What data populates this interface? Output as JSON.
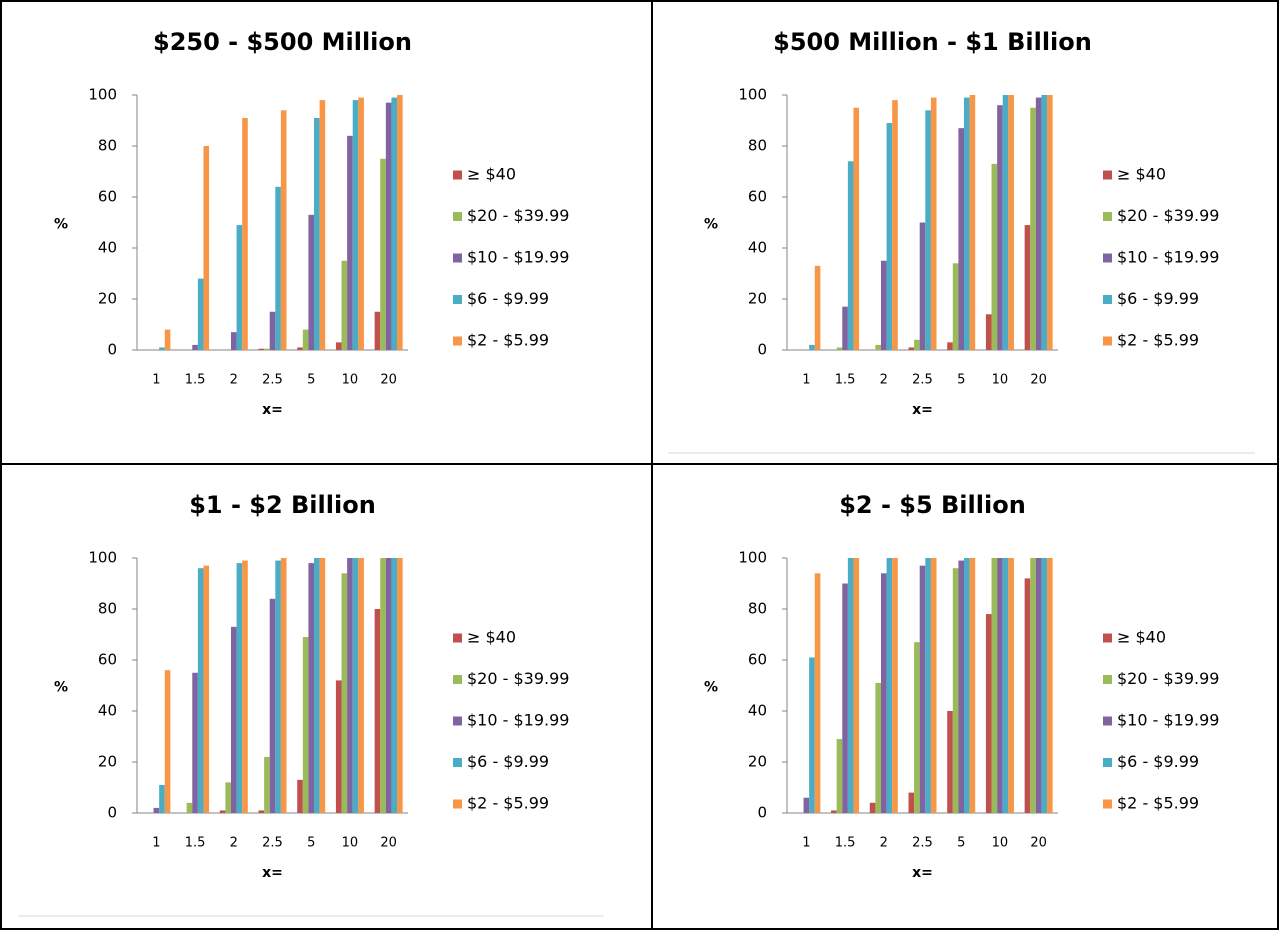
{
  "chart_data": [
    {
      "type": "bar",
      "title": "$250 - $500 Million",
      "ylabel": "%",
      "xlabel": "x=",
      "categories": [
        "1",
        "1.5",
        "2",
        "2.5",
        "5",
        "10",
        "20"
      ],
      "series": [
        {
          "name": "≥ $40",
          "color": "#c0504d",
          "values": [
            0,
            0,
            0,
            0.5,
            1,
            3,
            15
          ]
        },
        {
          "name": "$20 - $39.99",
          "color": "#9bbb59",
          "values": [
            0,
            0,
            0,
            0.5,
            8,
            35,
            75
          ]
        },
        {
          "name": "$10 - $19.99",
          "color": "#8064a2",
          "values": [
            0,
            2,
            7,
            15,
            53,
            84,
            97
          ]
        },
        {
          "name": "$6 - $9.99",
          "color": "#4bacc6",
          "values": [
            1,
            28,
            49,
            64,
            91,
            98,
            99
          ]
        },
        {
          "name": "$2 - $5.99",
          "color": "#f79646",
          "values": [
            8,
            80,
            91,
            94,
            98,
            99,
            100
          ]
        }
      ],
      "ylim": [
        0,
        100
      ],
      "yticks": [
        0,
        20,
        40,
        60,
        80,
        100
      ],
      "legend": "right"
    },
    {
      "type": "bar",
      "title": "$500 Million - $1 Billion",
      "ylabel": "%",
      "xlabel": "x=",
      "categories": [
        "1",
        "1.5",
        "2",
        "2.5",
        "5",
        "10",
        "20"
      ],
      "series": [
        {
          "name": "≥ $40",
          "color": "#c0504d",
          "values": [
            0,
            0,
            0,
            1,
            3,
            14,
            49
          ]
        },
        {
          "name": "$20 - $39.99",
          "color": "#9bbb59",
          "values": [
            0,
            1,
            2,
            4,
            34,
            73,
            95
          ]
        },
        {
          "name": "$10 - $19.99",
          "color": "#8064a2",
          "values": [
            0,
            17,
            35,
            50,
            87,
            96,
            99
          ]
        },
        {
          "name": "$6 - $9.99",
          "color": "#4bacc6",
          "values": [
            2,
            74,
            89,
            94,
            99,
            100,
            100
          ]
        },
        {
          "name": "$2 - $5.99",
          "color": "#f79646",
          "values": [
            33,
            95,
            98,
            99,
            100,
            100,
            100
          ]
        }
      ],
      "ylim": [
        0,
        100
      ],
      "yticks": [
        0,
        20,
        40,
        60,
        80,
        100
      ],
      "legend": "right"
    },
    {
      "type": "bar",
      "title": "$1 - $2 Billion",
      "ylabel": "%",
      "xlabel": "x=",
      "categories": [
        "1",
        "1.5",
        "2",
        "2.5",
        "5",
        "10",
        "20"
      ],
      "series": [
        {
          "name": "≥ $40",
          "color": "#c0504d",
          "values": [
            0,
            0,
            1,
            1,
            13,
            52,
            80
          ]
        },
        {
          "name": "$20 - $39.99",
          "color": "#9bbb59",
          "values": [
            0,
            4,
            12,
            22,
            69,
            94,
            100
          ]
        },
        {
          "name": "$10 - $19.99",
          "color": "#8064a2",
          "values": [
            2,
            55,
            73,
            84,
            98,
            100,
            100
          ]
        },
        {
          "name": "$6 - $9.99",
          "color": "#4bacc6",
          "values": [
            11,
            96,
            98,
            99,
            100,
            100,
            100
          ]
        },
        {
          "name": "$2 - $5.99",
          "color": "#f79646",
          "values": [
            56,
            97,
            99,
            100,
            100,
            100,
            100
          ]
        }
      ],
      "ylim": [
        0,
        100
      ],
      "yticks": [
        0,
        20,
        40,
        60,
        80,
        100
      ],
      "legend": "right"
    },
    {
      "type": "bar",
      "title": "$2 - $5 Billion",
      "ylabel": "%",
      "xlabel": "x=",
      "categories": [
        "1",
        "1.5",
        "2",
        "2.5",
        "5",
        "10",
        "20"
      ],
      "series": [
        {
          "name": "≥ $40",
          "color": "#c0504d",
          "values": [
            0,
            1,
            4,
            8,
            40,
            78,
            92
          ]
        },
        {
          "name": "$20 - $39.99",
          "color": "#9bbb59",
          "values": [
            0,
            29,
            51,
            67,
            96,
            100,
            100
          ]
        },
        {
          "name": "$10 - $19.99",
          "color": "#8064a2",
          "values": [
            6,
            90,
            94,
            97,
            99,
            100,
            100
          ]
        },
        {
          "name": "$6 - $9.99",
          "color": "#4bacc6",
          "values": [
            61,
            100,
            100,
            100,
            100,
            100,
            100
          ]
        },
        {
          "name": "$2 - $5.99",
          "color": "#f79646",
          "values": [
            94,
            100,
            100,
            100,
            100,
            100,
            100
          ]
        }
      ],
      "ylim": [
        0,
        100
      ],
      "yticks": [
        0,
        20,
        40,
        60,
        80,
        100
      ],
      "legend": "right"
    }
  ]
}
